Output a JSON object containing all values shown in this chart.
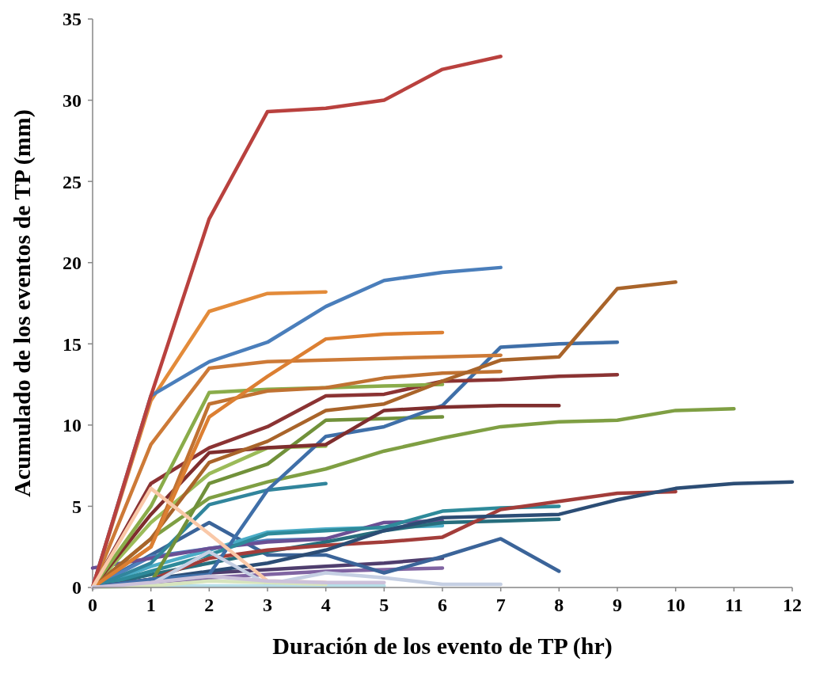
{
  "chart_data": {
    "type": "line",
    "xlabel": "Duración de los evento de TP (hr)",
    "ylabel": "Acumulado de los eventos de TP (mm)",
    "x": [
      0,
      1,
      2,
      3,
      4,
      5,
      6,
      7,
      8,
      9,
      10,
      11,
      12
    ],
    "xlim": [
      0,
      12
    ],
    "xticks": [
      0,
      1,
      2,
      3,
      4,
      5,
      6,
      7,
      8,
      9,
      10,
      11,
      12
    ],
    "ylim": [
      0,
      35
    ],
    "yticks": [
      0,
      5,
      10,
      15,
      20,
      25,
      30,
      35
    ],
    "grid": false,
    "marker": "none",
    "line_style": "solid",
    "series": [
      {
        "color": "#8064a2",
        "values": [
          0,
          0.3,
          0.6,
          0.8,
          1.0,
          1.1,
          1.2,
          null,
          null,
          null,
          null,
          null,
          null
        ]
      },
      {
        "color": "#4f3e6e",
        "values": [
          0,
          0.5,
          0.9,
          1.1,
          1.3,
          1.5,
          1.8,
          null,
          null,
          null,
          null,
          null,
          null
        ]
      },
      {
        "color": "#3b6499",
        "values": [
          0,
          2,
          4,
          2,
          2,
          0.9,
          1.9,
          3,
          1,
          null,
          null,
          null,
          null
        ]
      },
      {
        "color": "#4f81bd",
        "values": [
          0,
          1.9,
          2.4,
          2.9,
          3.0,
          null,
          null,
          null,
          null,
          null,
          null,
          null,
          null
        ]
      },
      {
        "color": "#4bacc6",
        "values": [
          0,
          1.3,
          2.3,
          3.4,
          3.6,
          3.7,
          3.8,
          null,
          null,
          null,
          null,
          null,
          null
        ]
      },
      {
        "color": "#6a4f94",
        "values": [
          1.2,
          1.8,
          2.4,
          2.8,
          3.0,
          4.0,
          4.1,
          null,
          null,
          null,
          null,
          null,
          null
        ]
      },
      {
        "color": "#276e7d",
        "values": [
          0,
          0.8,
          1.5,
          2.2,
          2.8,
          3.5,
          4.0,
          4.1,
          4.2,
          null,
          null,
          null,
          null
        ]
      },
      {
        "color": "#2e8a9a",
        "values": [
          0,
          1,
          2,
          3.3,
          3.5,
          3.7,
          4.7,
          4.9,
          5,
          null,
          null,
          null,
          null
        ]
      },
      {
        "color": "#a33d3a",
        "values": [
          0,
          0.5,
          1.8,
          2.3,
          2.6,
          2.8,
          3.1,
          4.8,
          5.3,
          5.8,
          5.9,
          null,
          null
        ]
      },
      {
        "color": "#2c4d75",
        "values": [
          0,
          0.5,
          1,
          1.5,
          2.3,
          3.5,
          4.3,
          4.4,
          4.5,
          5.4,
          6.1,
          6.4,
          6.5
        ]
      },
      {
        "color": "#31859c",
        "values": [
          0,
          1.5,
          5.1,
          6,
          6.4,
          null,
          null,
          null,
          null,
          null,
          null,
          null,
          null
        ]
      },
      {
        "color": "#9bbb59",
        "values": [
          0,
          4,
          7,
          8.6,
          8.7,
          null,
          null,
          null,
          null,
          null,
          null,
          null,
          null
        ]
      },
      {
        "color": "#7f9f43",
        "values": [
          0,
          3,
          5.5,
          6.5,
          7.3,
          8.4,
          9.2,
          9.9,
          10.2,
          10.3,
          10.9,
          11.0,
          null
        ]
      },
      {
        "color": "#71913a",
        "values": [
          0,
          0.3,
          6.4,
          7.6,
          10.3,
          10.4,
          10.5,
          null,
          null,
          null,
          null,
          null,
          null
        ]
      },
      {
        "color": "#3f6fa8",
        "values": [
          0,
          0.5,
          0.8,
          6,
          9.3,
          9.9,
          11.2,
          14.8,
          15,
          15.1,
          null,
          null,
          null
        ]
      },
      {
        "color": "#7f2e2e",
        "values": [
          0,
          4.5,
          8.3,
          8.6,
          8.8,
          10.9,
          11.1,
          11.2,
          11.2,
          null,
          null,
          null,
          null
        ]
      },
      {
        "color": "#8b3333",
        "values": [
          0,
          6.4,
          8.6,
          9.9,
          11.8,
          11.9,
          12.7,
          12.8,
          13,
          13.1,
          null,
          null,
          null
        ]
      },
      {
        "color": "#8aac4a",
        "values": [
          0,
          5,
          12.0,
          12.2,
          12.3,
          12.4,
          12.5,
          null,
          null,
          null,
          null,
          null,
          null
        ]
      },
      {
        "color": "#c07232",
        "values": [
          0,
          2.5,
          11.3,
          12.1,
          12.3,
          12.9,
          13.2,
          13.3,
          null,
          null,
          null,
          null,
          null
        ]
      },
      {
        "color": "#a9642a",
        "values": [
          0,
          3,
          7.7,
          9,
          10.9,
          11.3,
          12.7,
          14,
          14.2,
          18.4,
          18.8,
          null,
          null
        ]
      },
      {
        "color": "#cd7a37",
        "values": [
          0,
          8.8,
          13.5,
          13.9,
          14,
          14.1,
          14.2,
          14.3,
          null,
          null,
          null,
          null,
          null
        ]
      },
      {
        "color": "#dc7f32",
        "values": [
          0,
          2.5,
          10.5,
          13,
          15.3,
          15.6,
          15.7,
          null,
          null,
          null,
          null,
          null,
          null
        ]
      },
      {
        "color": "#e38b3a",
        "values": [
          0,
          11.5,
          17,
          18.1,
          18.2,
          null,
          null,
          null,
          null,
          null,
          null,
          null,
          null
        ]
      },
      {
        "color": "#4a7ebb",
        "values": [
          0,
          11.8,
          13.9,
          15.1,
          17.3,
          18.9,
          19.4,
          19.7,
          null,
          null,
          null,
          null,
          null
        ]
      },
      {
        "color": "#b9413e",
        "values": [
          0,
          11.8,
          22.7,
          29.3,
          29.5,
          30,
          31.9,
          32.7,
          null,
          null,
          null,
          null,
          null
        ]
      },
      {
        "color": "#f9c8a8",
        "values": [
          0,
          6.1,
          3.3,
          0.4,
          0.3,
          null,
          null,
          null,
          null,
          null,
          null,
          null,
          null
        ]
      },
      {
        "color": "#c5cfe3",
        "values": [
          0,
          0.2,
          2.2,
          0.2,
          0.9,
          0.6,
          0.2,
          0.2,
          null,
          null,
          null,
          null,
          null
        ]
      },
      {
        "color": "#b7dee8",
        "values": [
          0,
          0.1,
          0.1,
          0.1,
          0.1,
          0.1,
          null,
          null,
          null,
          null,
          null,
          null,
          null
        ]
      },
      {
        "color": "#d7e4bd",
        "values": [
          0,
          0.1,
          0.4,
          0.3,
          0.2,
          null,
          null,
          null,
          null,
          null,
          null,
          null,
          null
        ]
      },
      {
        "color": "#ccc1da",
        "values": [
          0,
          0.3,
          0.7,
          0.4,
          0.3,
          0.3,
          null,
          null,
          null,
          null,
          null,
          null,
          null
        ]
      }
    ]
  }
}
